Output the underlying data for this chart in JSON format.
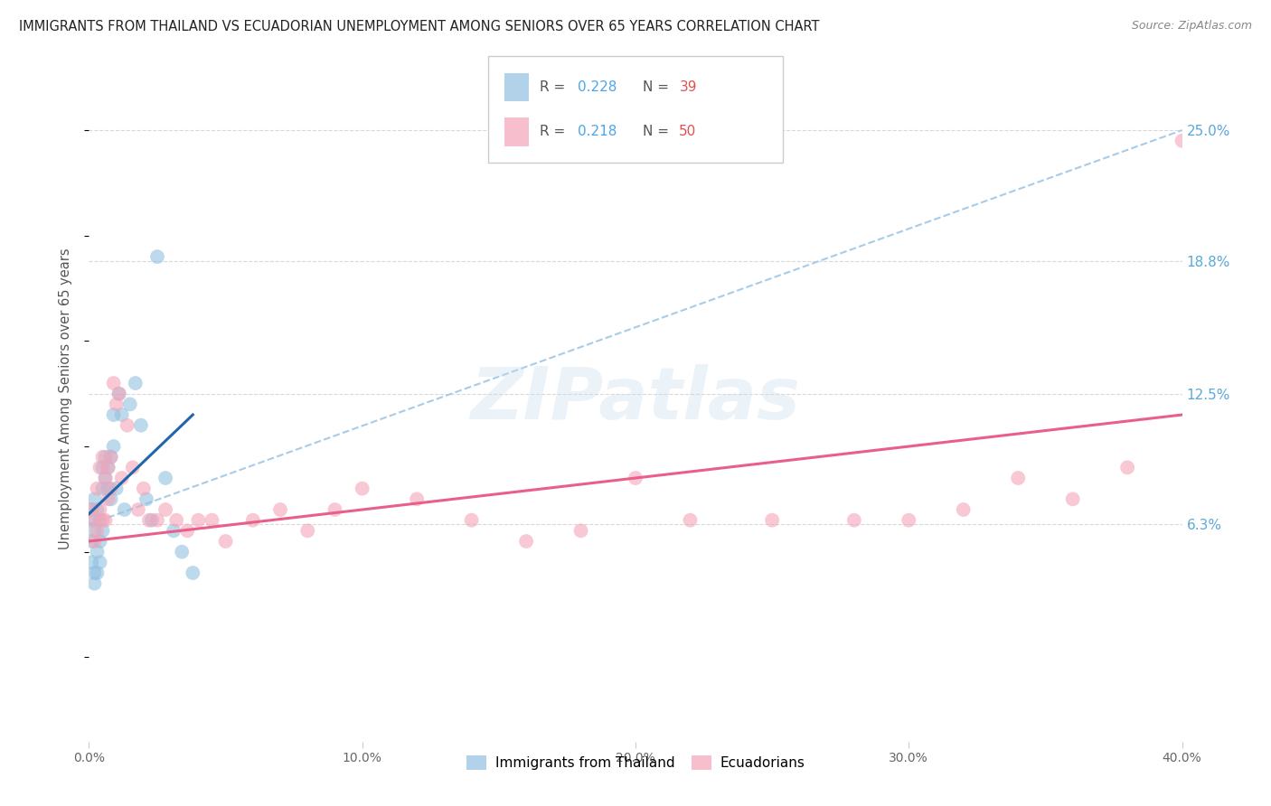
{
  "title": "IMMIGRANTS FROM THAILAND VS ECUADORIAN UNEMPLOYMENT AMONG SENIORS OVER 65 YEARS CORRELATION CHART",
  "source": "Source: ZipAtlas.com",
  "ylabel": "Unemployment Among Seniors over 65 years",
  "ytick_labels": [
    "25.0%",
    "18.8%",
    "12.5%",
    "6.3%"
  ],
  "ytick_values": [
    0.25,
    0.188,
    0.125,
    0.063
  ],
  "xlim": [
    0.0,
    0.4
  ],
  "ylim": [
    -0.04,
    0.285
  ],
  "xtick_positions": [
    0.0,
    0.1,
    0.2,
    0.3,
    0.4
  ],
  "xtick_labels": [
    "0.0%",
    "10.0%",
    "20.0%",
    "30.0%",
    "40.0%"
  ],
  "legend_labels_bottom": [
    "Immigrants from Thailand",
    "Ecuadorians"
  ],
  "watermark": "ZIPatlas",
  "blue_color": "#92c0e0",
  "pink_color": "#f4a4b8",
  "blue_line_color": "#2166ac",
  "pink_line_color": "#e8608a",
  "blue_dashed_color": "#a8cce8",
  "grid_color": "#d8d8d8",
  "thailand_x": [
    0.001,
    0.001,
    0.001,
    0.001,
    0.002,
    0.002,
    0.002,
    0.002,
    0.003,
    0.003,
    0.003,
    0.004,
    0.004,
    0.004,
    0.005,
    0.005,
    0.005,
    0.006,
    0.006,
    0.007,
    0.007,
    0.008,
    0.008,
    0.009,
    0.009,
    0.01,
    0.011,
    0.012,
    0.013,
    0.015,
    0.017,
    0.019,
    0.021,
    0.023,
    0.025,
    0.028,
    0.031,
    0.034,
    0.038
  ],
  "thailand_y": [
    0.055,
    0.065,
    0.07,
    0.045,
    0.06,
    0.075,
    0.04,
    0.035,
    0.07,
    0.05,
    0.04,
    0.065,
    0.055,
    0.045,
    0.08,
    0.09,
    0.06,
    0.085,
    0.095,
    0.09,
    0.08,
    0.095,
    0.075,
    0.1,
    0.115,
    0.08,
    0.125,
    0.115,
    0.07,
    0.12,
    0.13,
    0.11,
    0.075,
    0.065,
    0.19,
    0.085,
    0.06,
    0.05,
    0.04
  ],
  "ecuador_x": [
    0.001,
    0.002,
    0.002,
    0.003,
    0.003,
    0.004,
    0.004,
    0.005,
    0.005,
    0.006,
    0.006,
    0.007,
    0.007,
    0.008,
    0.008,
    0.009,
    0.01,
    0.011,
    0.012,
    0.014,
    0.016,
    0.018,
    0.02,
    0.022,
    0.025,
    0.028,
    0.032,
    0.036,
    0.04,
    0.045,
    0.05,
    0.06,
    0.07,
    0.08,
    0.09,
    0.1,
    0.12,
    0.14,
    0.16,
    0.18,
    0.2,
    0.22,
    0.25,
    0.28,
    0.3,
    0.32,
    0.34,
    0.36,
    0.38,
    0.4
  ],
  "ecuador_y": [
    0.07,
    0.065,
    0.055,
    0.08,
    0.06,
    0.09,
    0.07,
    0.095,
    0.065,
    0.085,
    0.065,
    0.09,
    0.075,
    0.095,
    0.08,
    0.13,
    0.12,
    0.125,
    0.085,
    0.11,
    0.09,
    0.07,
    0.08,
    0.065,
    0.065,
    0.07,
    0.065,
    0.06,
    0.065,
    0.065,
    0.055,
    0.065,
    0.07,
    0.06,
    0.07,
    0.08,
    0.075,
    0.065,
    0.055,
    0.06,
    0.085,
    0.065,
    0.065,
    0.065,
    0.065,
    0.07,
    0.085,
    0.075,
    0.09,
    0.245
  ]
}
